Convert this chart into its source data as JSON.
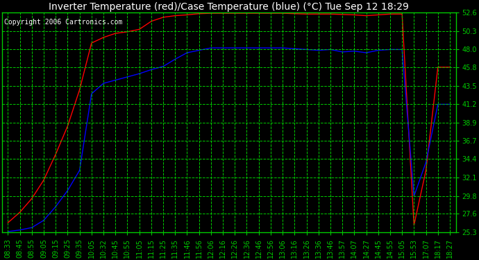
{
  "title": "Inverter Temperature (red)/Case Temperature (blue) (°C) Tue Sep 12 18:29",
  "copyright": "Copyright 2006 Cartronics.com",
  "background_color": "#000000",
  "plot_bg_color": "#000000",
  "grid_color": "#00cc00",
  "yticks": [
    25.3,
    27.6,
    29.8,
    32.1,
    34.4,
    36.7,
    38.9,
    41.2,
    43.5,
    45.8,
    48.0,
    50.3,
    52.6
  ],
  "ylim": [
    25.3,
    52.6
  ],
  "xtick_labels": [
    "08:33",
    "08:45",
    "08:55",
    "09:05",
    "09:15",
    "09:25",
    "09:35",
    "10:05",
    "10:32",
    "10:45",
    "10:55",
    "11:05",
    "11:15",
    "11:25",
    "11:35",
    "11:46",
    "11:56",
    "12:06",
    "12:16",
    "12:26",
    "12:36",
    "12:46",
    "12:56",
    "13:06",
    "13:16",
    "13:26",
    "13:36",
    "13:46",
    "13:57",
    "14:07",
    "14:27",
    "14:45",
    "14:55",
    "15:05",
    "15:53",
    "17:07",
    "18:17",
    "18:27"
  ],
  "red_data": [
    [
      0,
      26.5
    ],
    [
      1,
      27.8
    ],
    [
      2,
      29.5
    ],
    [
      3,
      31.8
    ],
    [
      4,
      35.0
    ],
    [
      5,
      38.5
    ],
    [
      6,
      43.0
    ],
    [
      7,
      48.8
    ],
    [
      8,
      49.5
    ],
    [
      9,
      50.0
    ],
    [
      10,
      50.2
    ],
    [
      11,
      50.5
    ],
    [
      12,
      51.5
    ],
    [
      13,
      52.0
    ],
    [
      14,
      52.2
    ],
    [
      15,
      52.3
    ],
    [
      16,
      52.45
    ],
    [
      17,
      52.5
    ],
    [
      18,
      52.5
    ],
    [
      19,
      52.5
    ],
    [
      20,
      52.5
    ],
    [
      21,
      52.5
    ],
    [
      22,
      52.5
    ],
    [
      23,
      52.5
    ],
    [
      24,
      52.45
    ],
    [
      25,
      52.4
    ],
    [
      26,
      52.4
    ],
    [
      27,
      52.4
    ],
    [
      28,
      52.35
    ],
    [
      29,
      52.3
    ],
    [
      30,
      52.2
    ],
    [
      31,
      52.3
    ],
    [
      32,
      52.4
    ],
    [
      33,
      52.4
    ],
    [
      34,
      26.2
    ],
    [
      35,
      33.0
    ],
    [
      36,
      45.8
    ],
    [
      37,
      45.8
    ]
  ],
  "blue_data": [
    [
      0,
      25.4
    ],
    [
      1,
      25.6
    ],
    [
      2,
      25.9
    ],
    [
      3,
      26.8
    ],
    [
      4,
      28.5
    ],
    [
      5,
      30.5
    ],
    [
      6,
      33.0
    ],
    [
      7,
      42.5
    ],
    [
      8,
      43.8
    ],
    [
      9,
      44.2
    ],
    [
      10,
      44.6
    ],
    [
      11,
      45.0
    ],
    [
      12,
      45.5
    ],
    [
      13,
      45.9
    ],
    [
      14,
      46.8
    ],
    [
      15,
      47.6
    ],
    [
      16,
      47.9
    ],
    [
      17,
      48.2
    ],
    [
      18,
      48.2
    ],
    [
      19,
      48.2
    ],
    [
      20,
      48.2
    ],
    [
      21,
      48.2
    ],
    [
      22,
      48.2
    ],
    [
      23,
      48.2
    ],
    [
      24,
      48.1
    ],
    [
      25,
      48.0
    ],
    [
      26,
      47.9
    ],
    [
      27,
      48.0
    ],
    [
      28,
      47.7
    ],
    [
      29,
      47.8
    ],
    [
      30,
      47.6
    ],
    [
      31,
      47.9
    ],
    [
      32,
      48.0
    ],
    [
      33,
      48.0
    ],
    [
      34,
      29.8
    ],
    [
      35,
      34.0
    ],
    [
      36,
      41.2
    ],
    [
      37,
      41.2
    ]
  ],
  "red_color": "#ff0000",
  "blue_color": "#0000ff",
  "title_fontsize": 10,
  "tick_fontsize": 7,
  "copyright_fontsize": 7,
  "ylabel_color": "#00cc00",
  "tick_label_color": "#00cc00"
}
